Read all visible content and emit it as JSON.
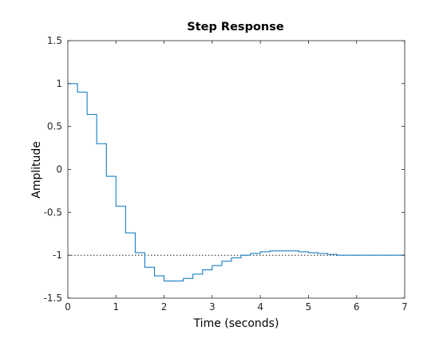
{
  "chart_data": {
    "type": "line",
    "step": true,
    "title": "Step Response",
    "xlabel": "Time (seconds)",
    "ylabel": "Amplitude",
    "xlim": [
      0,
      7
    ],
    "ylim": [
      -1.5,
      1.5
    ],
    "xticks": [
      0,
      1,
      2,
      3,
      4,
      5,
      6,
      7
    ],
    "xtick_labels": [
      "0",
      "1",
      "2",
      "3",
      "4",
      "5",
      "6",
      "7"
    ],
    "yticks": [
      1.5,
      1,
      0.5,
      0,
      -0.5,
      -1,
      -1.5
    ],
    "ytick_labels": [
      "1.5",
      "1",
      "0.5",
      "0",
      "-0.5",
      "-1",
      "-1.5"
    ],
    "grid": false,
    "box": true,
    "sample_time": 0.2,
    "series": [
      {
        "color": "#0072BD",
        "step": "post",
        "x": [
          0,
          0.2,
          0.4,
          0.6,
          0.8,
          1.0,
          1.2,
          1.4,
          1.6,
          1.8,
          2.0,
          2.2,
          2.4,
          2.6,
          2.8,
          3.0,
          3.2,
          3.4,
          3.6,
          3.8,
          4.0,
          4.2,
          4.4,
          4.6,
          4.8,
          5.0,
          5.2,
          5.4,
          5.6,
          5.8,
          6.0,
          6.2,
          6.4,
          6.6,
          6.8,
          7.0
        ],
        "y": [
          1.0,
          0.9,
          0.64,
          0.3,
          -0.08,
          -0.43,
          -0.74,
          -0.97,
          -1.14,
          -1.24,
          -1.3,
          -1.3,
          -1.27,
          -1.22,
          -1.17,
          -1.12,
          -1.07,
          -1.03,
          -1.0,
          -0.98,
          -0.96,
          -0.95,
          -0.95,
          -0.95,
          -0.96,
          -0.97,
          -0.98,
          -0.99,
          -1.0,
          -1.0,
          -1.0,
          -1.0,
          -1.0,
          -1.0,
          -1.0,
          -1.0
        ]
      }
    ],
    "reference_lines": [
      {
        "y": -1,
        "style": "dotted",
        "color": "#000000"
      }
    ]
  }
}
